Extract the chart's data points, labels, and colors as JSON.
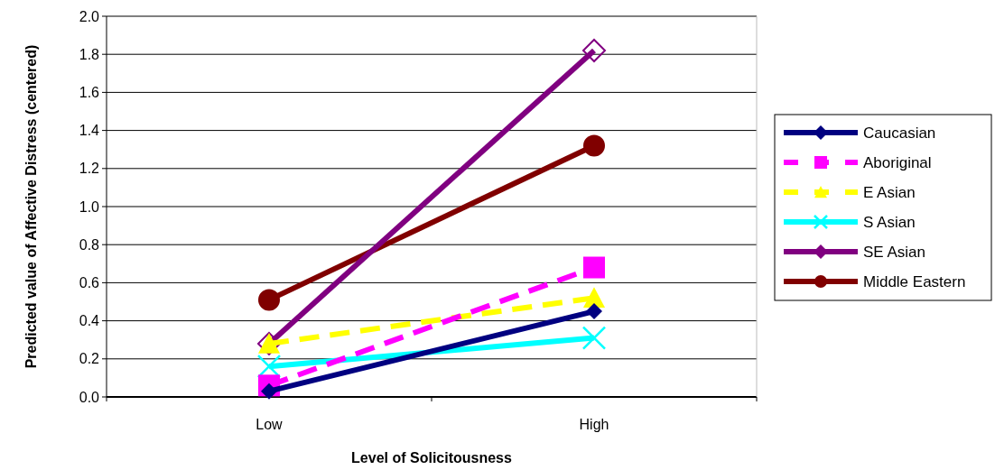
{
  "chart_data": {
    "type": "line",
    "xlabel": "Level of Solicitousness",
    "ylabel": "Predicted value of Affective Distress (centered)",
    "categories": [
      "Low",
      "High"
    ],
    "ylim": [
      0,
      2
    ],
    "yticks": [
      {
        "value": 0,
        "label": "0.0"
      },
      {
        "value": 0.2,
        "label": "0.2"
      },
      {
        "value": 0.4,
        "label": "0.4"
      },
      {
        "value": 0.6,
        "label": "0.6"
      },
      {
        "value": 0.8,
        "label": "0.8"
      },
      {
        "value": 1,
        "label": "1.0"
      },
      {
        "value": 1.2,
        "label": "1.2"
      },
      {
        "value": 1.4,
        "label": "1.4"
      },
      {
        "value": 1.6,
        "label": "1.6"
      },
      {
        "value": 1.8,
        "label": "1.8"
      },
      {
        "value": 2,
        "label": "2.0"
      }
    ],
    "grid": "y",
    "legend": "right",
    "series": [
      {
        "name": "Caucasian",
        "color": "#000080",
        "values": [
          0.03,
          0.45
        ],
        "marker": "diamond",
        "line_style": "solid"
      },
      {
        "name": "Aboriginal",
        "color": "#ff00ff",
        "values": [
          0.06,
          0.68
        ],
        "marker": "square",
        "line_style": "dashed"
      },
      {
        "name": "E Asian",
        "color": "#ffff00",
        "values": [
          0.28,
          0.52
        ],
        "marker": "triangle",
        "line_style": "dashed"
      },
      {
        "name": "S Asian",
        "color": "#00ffff",
        "values": [
          0.16,
          0.31
        ],
        "marker": "cross",
        "line_style": "solid"
      },
      {
        "name": "SE Asian",
        "color": "#800080",
        "values": [
          0.28,
          1.82
        ],
        "marker": "diamond",
        "line_style": "solid"
      },
      {
        "name": "Middle Eastern",
        "color": "#800000",
        "values": [
          0.51,
          1.32
        ],
        "marker": "circle",
        "line_style": "solid"
      }
    ]
  }
}
